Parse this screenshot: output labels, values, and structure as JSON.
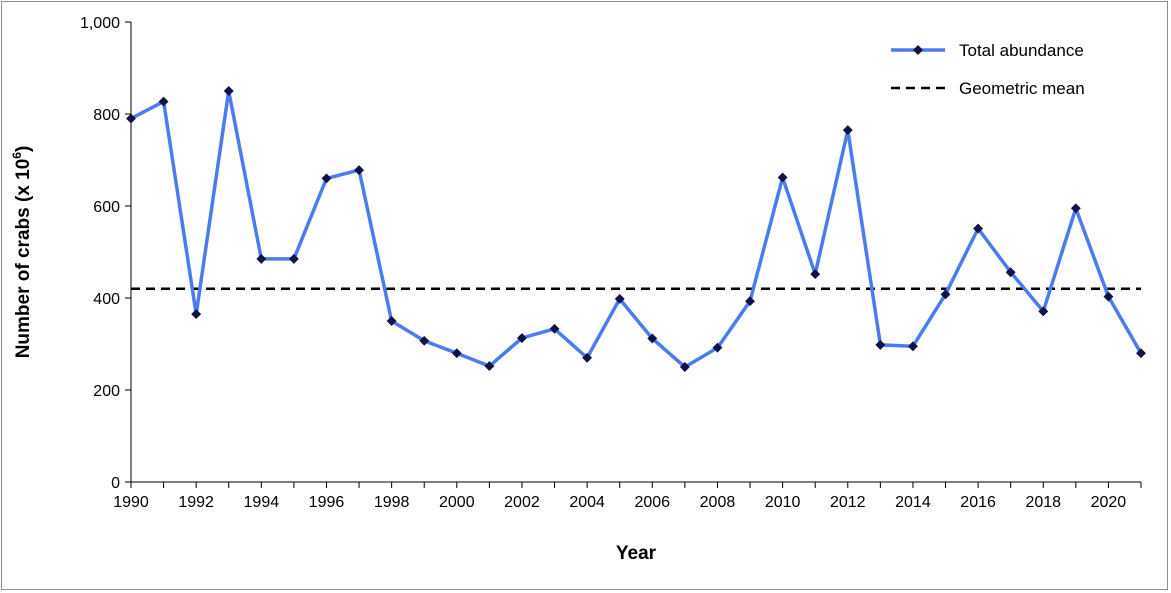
{
  "chart_data": {
    "type": "line",
    "xlabel": "Year",
    "ylabel_main": "Number of crabs (x 10",
    "ylabel_sup": "6",
    "ylabel_end": ")",
    "ylim": [
      0,
      1000
    ],
    "xlim": [
      1990,
      2021
    ],
    "y_ticks": [
      {
        "value": 0,
        "label": "0"
      },
      {
        "value": 200,
        "label": "200"
      },
      {
        "value": 400,
        "label": "400"
      },
      {
        "value": 600,
        "label": "600"
      },
      {
        "value": 800,
        "label": "800"
      },
      {
        "value": 1000,
        "label": "1,000"
      }
    ],
    "x_ticks": [
      {
        "value": 1990,
        "label": "1990"
      },
      {
        "value": 1992,
        "label": "1992"
      },
      {
        "value": 1994,
        "label": "1994"
      },
      {
        "value": 1996,
        "label": "1996"
      },
      {
        "value": 1998,
        "label": "1998"
      },
      {
        "value": 2000,
        "label": "2000"
      },
      {
        "value": 2002,
        "label": "2002"
      },
      {
        "value": 2004,
        "label": "2004"
      },
      {
        "value": 2006,
        "label": "2006"
      },
      {
        "value": 2008,
        "label": "2008"
      },
      {
        "value": 2010,
        "label": "2010"
      },
      {
        "value": 2012,
        "label": "2012"
      },
      {
        "value": 2014,
        "label": "2014"
      },
      {
        "value": 2016,
        "label": "2016"
      },
      {
        "value": 2018,
        "label": "2018"
      },
      {
        "value": 2020,
        "label": "2020"
      }
    ],
    "series": [
      {
        "name": "Total abundance",
        "color": "#4a7cf0",
        "marker_color": "#12124a",
        "x": [
          1990,
          1991,
          1992,
          1993,
          1994,
          1995,
          1996,
          1997,
          1998,
          1999,
          2000,
          2001,
          2002,
          2003,
          2004,
          2005,
          2006,
          2007,
          2008,
          2009,
          2010,
          2011,
          2012,
          2013,
          2014,
          2015,
          2016,
          2017,
          2018,
          2019,
          2020,
          2021
        ],
        "y": [
          790,
          827,
          365,
          850,
          485,
          485,
          660,
          678,
          350,
          307,
          280,
          252,
          313,
          333,
          270,
          398,
          312,
          250,
          292,
          393,
          662,
          452,
          765,
          298,
          295,
          408,
          551,
          456,
          371,
          595,
          403,
          280
        ]
      },
      {
        "name": "Geometric mean",
        "color": "#000000",
        "dashed": true,
        "value": 420
      }
    ],
    "grid": false,
    "legend_position": "top-right"
  }
}
